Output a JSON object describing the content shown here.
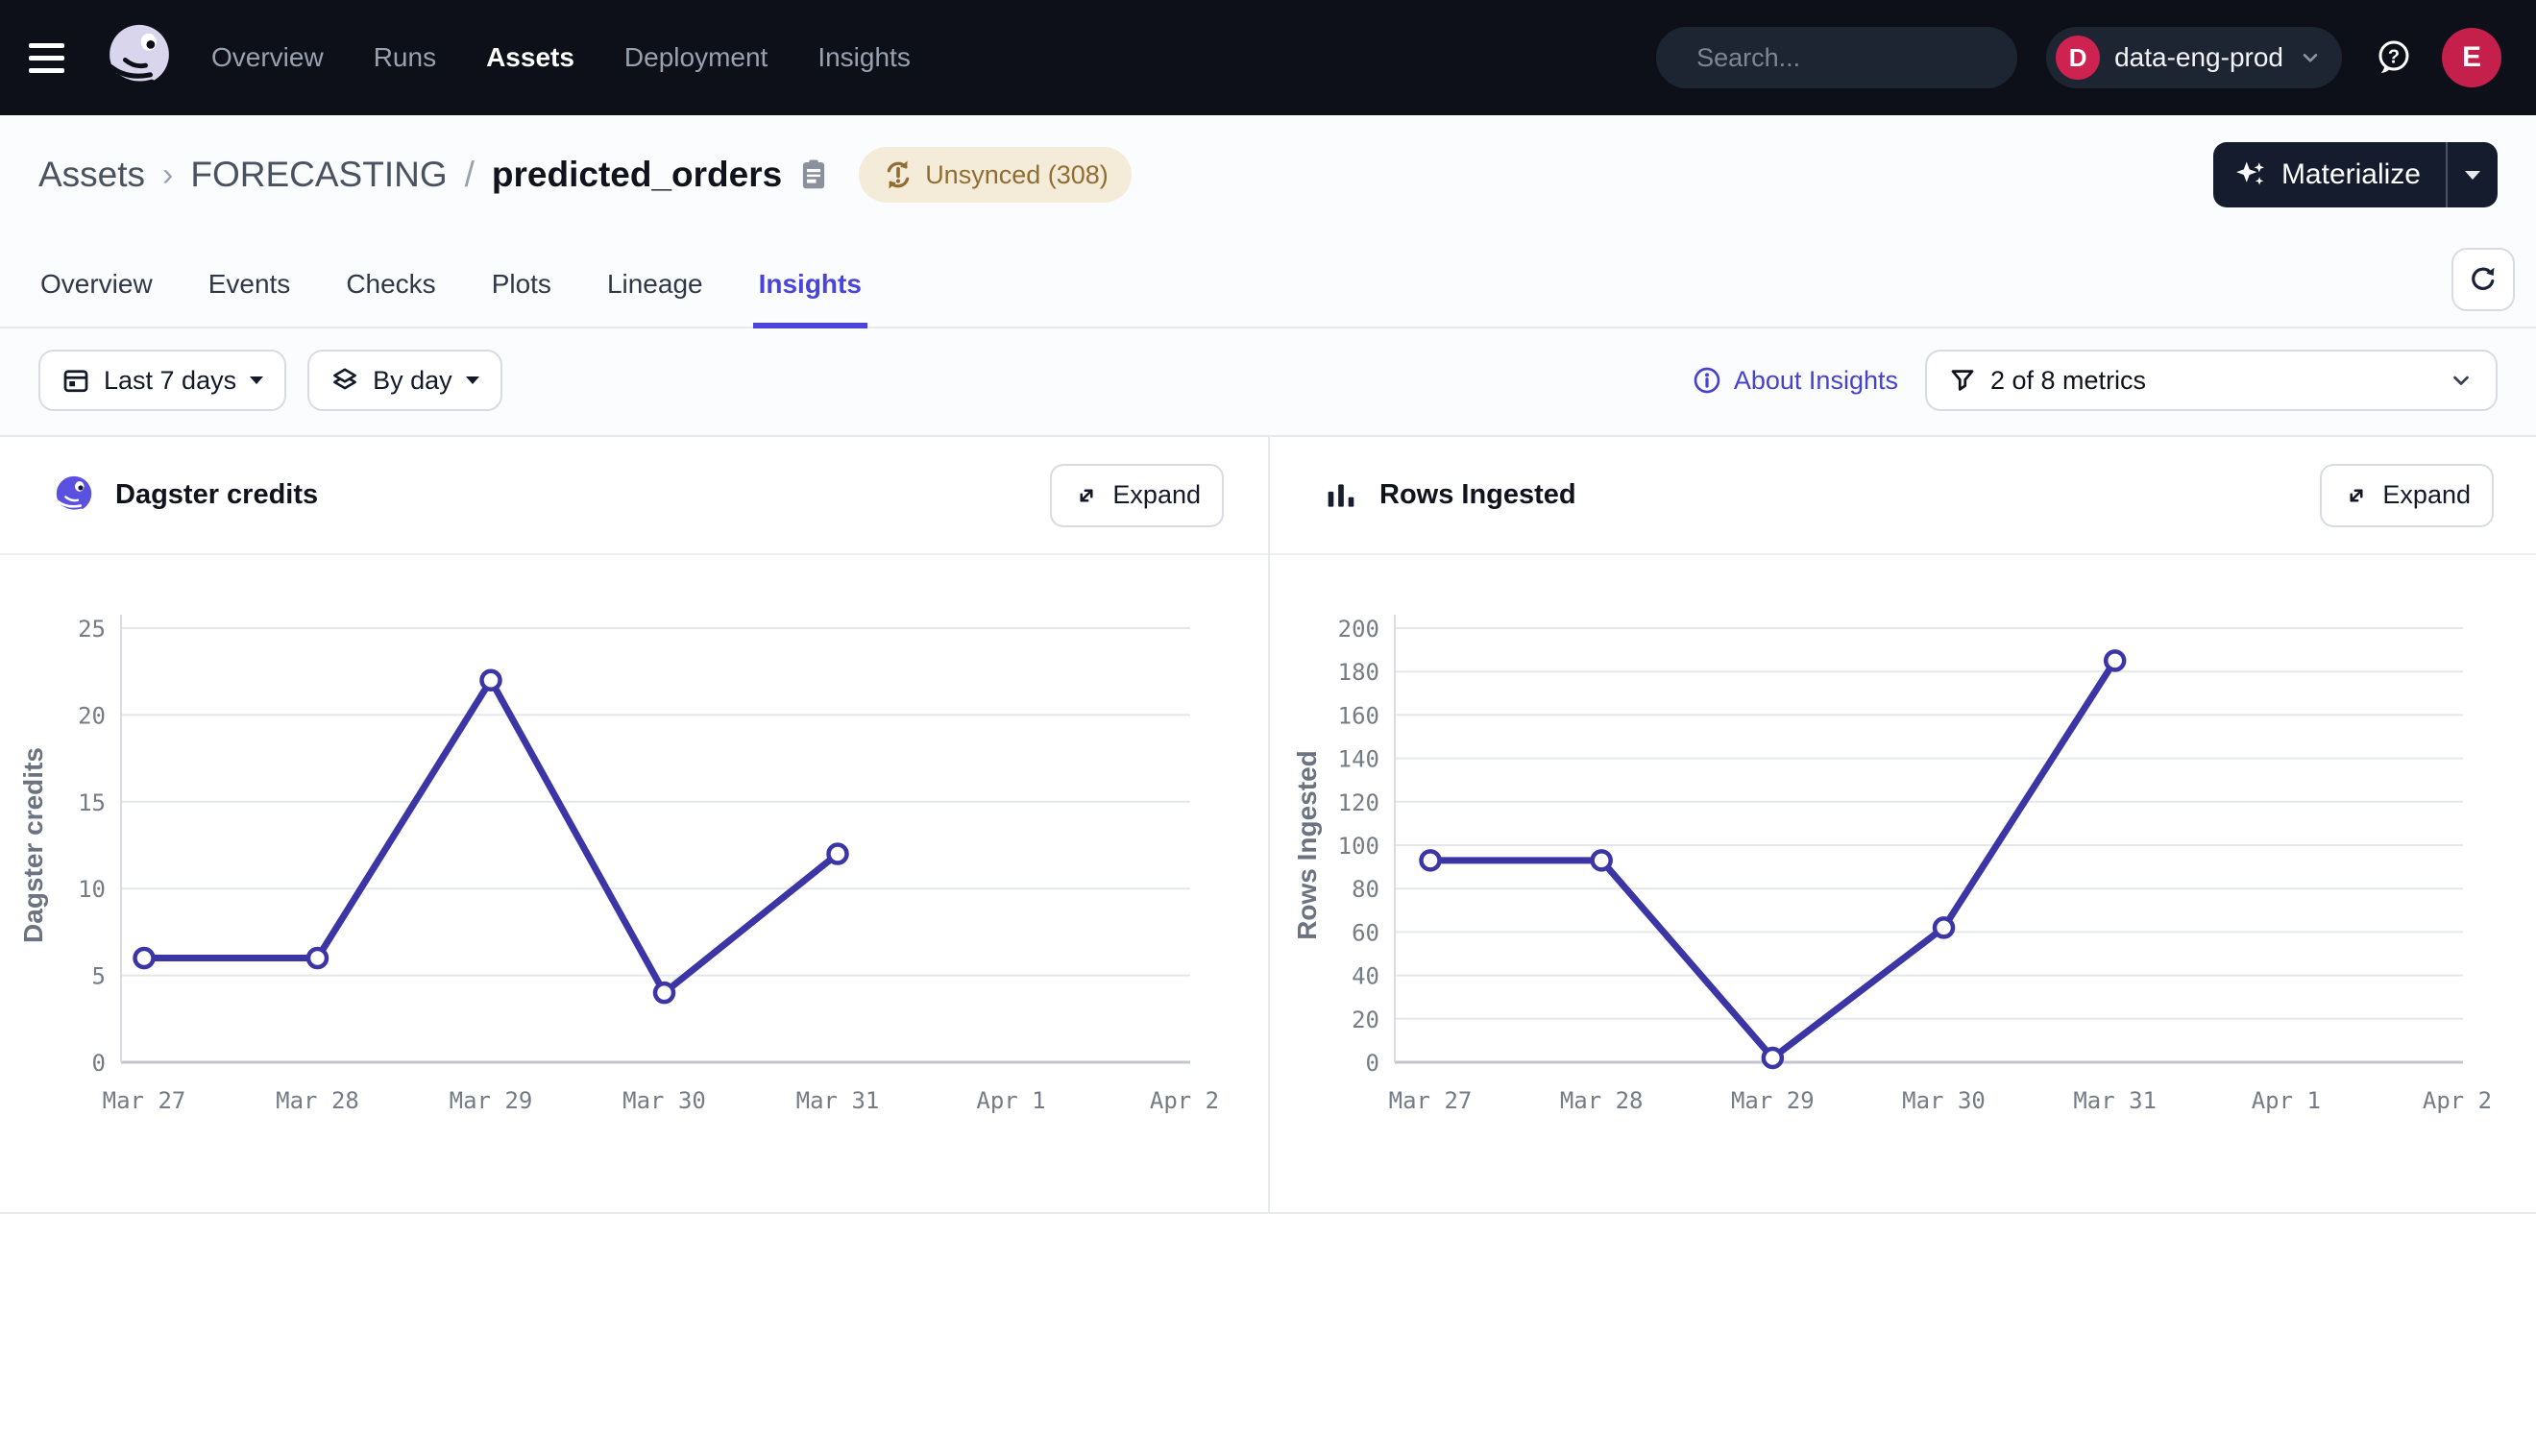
{
  "nav": {
    "menu_items": [
      {
        "label": "Overview",
        "active": false
      },
      {
        "label": "Runs",
        "active": false
      },
      {
        "label": "Assets",
        "active": true
      },
      {
        "label": "Deployment",
        "active": false
      },
      {
        "label": "Insights",
        "active": false
      }
    ],
    "search": {
      "placeholder": "Search...",
      "shortcut_key": "/"
    },
    "deployment": {
      "badge_initial": "D",
      "name": "data-eng-prod"
    },
    "user_initial": "E"
  },
  "header": {
    "breadcrumb": {
      "section": "Assets",
      "chevron": "›",
      "group": "FORECASTING",
      "separator": "/",
      "asset_name": "predicted_orders"
    },
    "sync_badge": "Unsynced (308)",
    "materialize_label": "Materialize"
  },
  "tabs": {
    "items": [
      "Overview",
      "Events",
      "Checks",
      "Plots",
      "Lineage",
      "Insights"
    ],
    "active": "Insights"
  },
  "filters": {
    "time_range_label": "Last 7 days",
    "granularity_label": "By day",
    "about_link": "About Insights",
    "metrics_selector": "2 of 8 metrics"
  },
  "charts": {
    "expand_label": "Expand"
  },
  "colors": {
    "accent": "#4B44DB",
    "line": "#3C35A5",
    "nav_background": "#0D1018",
    "crimson": "#CE2250",
    "badge_background": "#F5EBD9",
    "badge_text": "#8F6D33",
    "grid": "#E5E7EA",
    "axis": "#C2C6CC"
  },
  "chart_data": [
    {
      "type": "line",
      "title": "Dagster credits",
      "icon": "dagster-logo-icon",
      "ylabel": "Dagster credits",
      "xlabel": "",
      "categories": [
        "Mar 27",
        "Mar 28",
        "Mar 29",
        "Mar 30",
        "Mar 31",
        "Apr 1",
        "Apr 2"
      ],
      "values": [
        6,
        6,
        22,
        4,
        12,
        null,
        null
      ],
      "ylim": [
        0,
        25
      ],
      "ytick_step": 5,
      "grid": true,
      "legend": false,
      "marker": "open-circle"
    },
    {
      "type": "line",
      "title": "Rows Ingested",
      "icon": "bar-chart-icon",
      "ylabel": "Rows Ingested",
      "xlabel": "",
      "categories": [
        "Mar 27",
        "Mar 28",
        "Mar 29",
        "Mar 30",
        "Mar 31",
        "Apr 1",
        "Apr 2"
      ],
      "values": [
        93,
        93,
        2,
        62,
        185,
        null,
        null
      ],
      "ylim": [
        0,
        200
      ],
      "ytick_step": 20,
      "grid": true,
      "legend": false,
      "marker": "open-circle"
    }
  ]
}
